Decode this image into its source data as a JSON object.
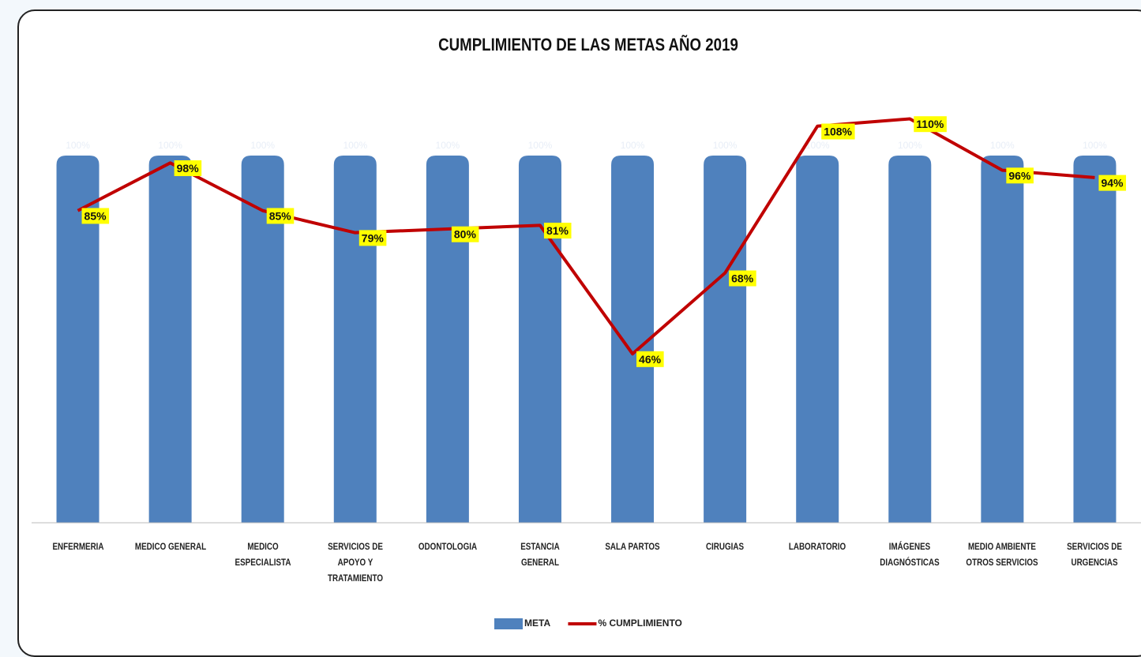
{
  "chart_data": {
    "type": "bar",
    "title": "CUMPLIMIENTO DE LAS METAS AÑO 2019",
    "categories": [
      "ENFERMERIA",
      "MEDICO GENERAL",
      "MEDICO ESPECIALISTA",
      "SERVICIOS DE APOYO Y TRATAMIENTO",
      "ODONTOLOGIA",
      "ESTANCIA GENERAL",
      "SALA PARTOS",
      "CIRUGIAS",
      "LABORATORIO",
      "IMÁGENES DIAGNÓSTICAS",
      "MEDIO AMBIENTE OTROS SERVICIOS",
      "SERVICIOS DE URGENCIAS"
    ],
    "series": [
      {
        "name": "META",
        "type": "bar",
        "color": "#4f81bd",
        "values": [
          100,
          100,
          100,
          100,
          100,
          100,
          100,
          100,
          100,
          100,
          100,
          100
        ],
        "value_labels": [
          "100%",
          "100%",
          "100%",
          "100%",
          "100%",
          "100%",
          "100%",
          "100%",
          "100%",
          "100%",
          "100%",
          "100%"
        ]
      },
      {
        "name": "% CUMPLIMIENTO",
        "type": "line",
        "color": "#c00000",
        "values": [
          85,
          98,
          85,
          79,
          80,
          81,
          46,
          68,
          108,
          110,
          96,
          94
        ],
        "value_labels": [
          "85%",
          "98%",
          "85%",
          "79%",
          "80%",
          "81%",
          "46%",
          "68%",
          "108%",
          "110%",
          "96%",
          "94%"
        ]
      }
    ],
    "ylim": [
      0,
      120
    ],
    "legend": "bottom"
  }
}
